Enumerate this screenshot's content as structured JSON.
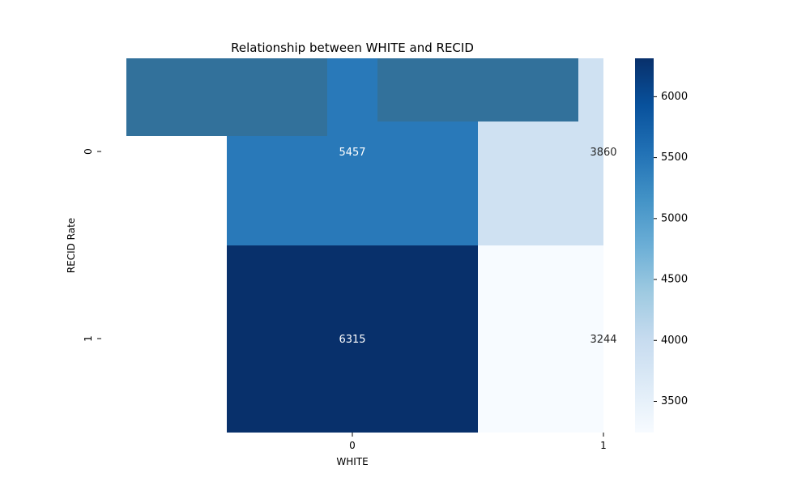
{
  "chart_data": {
    "type": "heatmap",
    "title": "Relationship between WHITE and RECID",
    "xlabel": "WHITE",
    "ylabel": "RECID Rate",
    "x_categories": [
      "0",
      "1"
    ],
    "y_categories": [
      "0",
      "1"
    ],
    "values": [
      [
        5457,
        3860
      ],
      [
        6315,
        3244
      ]
    ],
    "cell_labels": [
      [
        "5457",
        "3860"
      ],
      [
        "6315",
        "3244"
      ]
    ],
    "colormap": "Blues",
    "vmin": 3244,
    "vmax": 6315,
    "colorbar_ticks": [
      "3500",
      "4000",
      "4500",
      "5000",
      "5500",
      "6000"
    ],
    "colors": {
      "low": "#f7fbff",
      "mid": "#6baed6",
      "high": "#08306b",
      "overlay": "#32719b"
    }
  }
}
